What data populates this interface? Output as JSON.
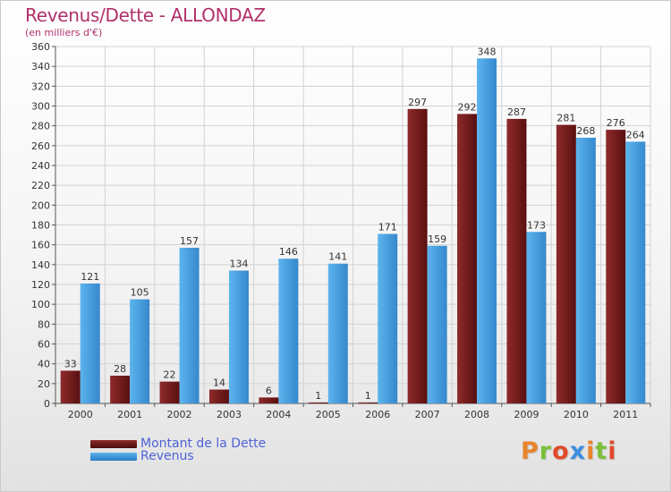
{
  "chart_data": {
    "type": "bar",
    "title": "Revenus/Dette - ALLONDAZ",
    "subtitle": "(en milliers d'€)",
    "xlabel": "",
    "ylabel": "",
    "ylim": [
      0,
      360
    ],
    "ytick_step": 20,
    "grid": true,
    "categories": [
      "2000",
      "2001",
      "2002",
      "2003",
      "2004",
      "2005",
      "2006",
      "2007",
      "2008",
      "2009",
      "2010",
      "2011"
    ],
    "series": [
      {
        "name": "Montant de la Dette",
        "color": "#7a2020",
        "values": [
          33,
          28,
          22,
          14,
          6,
          1,
          1,
          297,
          292,
          287,
          281,
          276
        ]
      },
      {
        "name": "Revenus",
        "color": "#4aa3e0",
        "values": [
          121,
          105,
          157,
          134,
          146,
          141,
          171,
          159,
          348,
          173,
          268,
          264
        ]
      }
    ],
    "legend_position": "bottom-left"
  },
  "logo": {
    "text": "Proxiti",
    "colors": [
      "#e8852c",
      "#7bbf3a",
      "#e04a2a",
      "#3a8ee0",
      "#e8852c",
      "#7bbf3a",
      "#e04a2a"
    ]
  }
}
